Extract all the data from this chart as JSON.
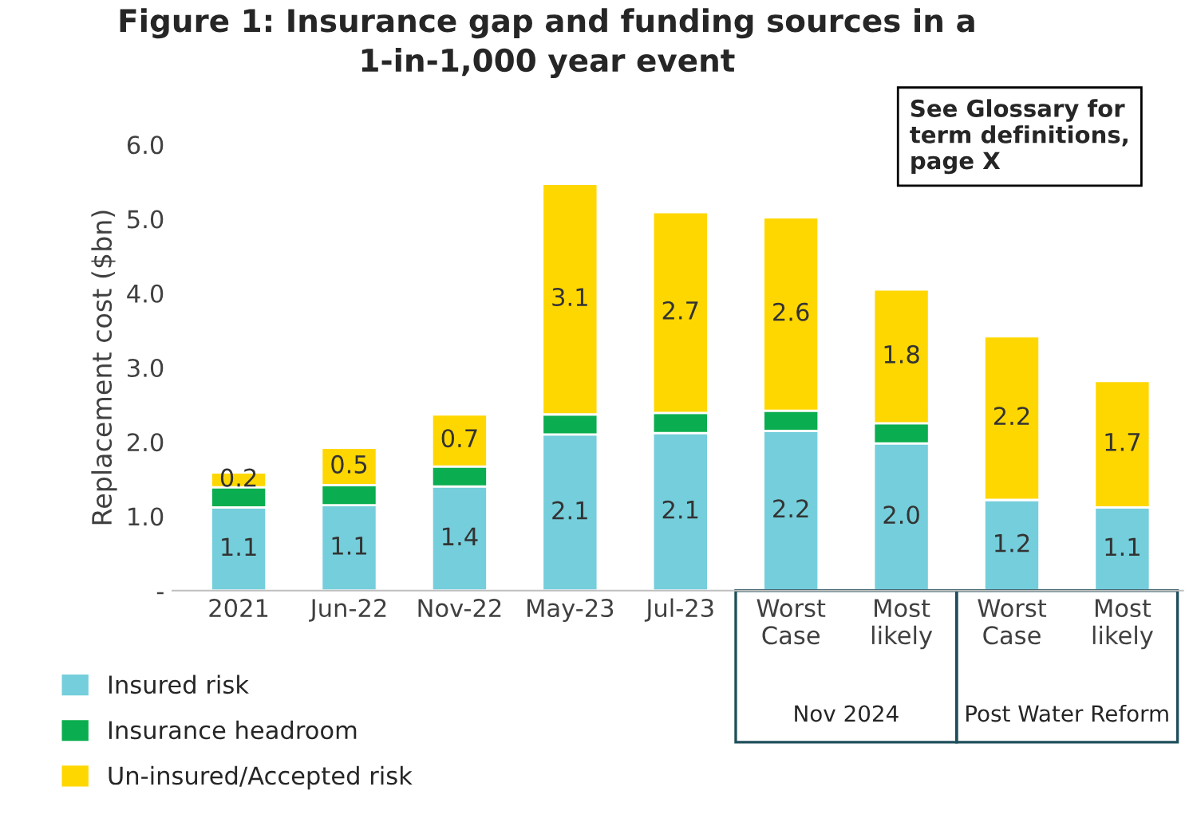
{
  "chart_data": {
    "type": "bar",
    "stacked": true,
    "title": "Figure 1: Insurance gap and funding sources in a\n1-in-1,000 year event",
    "ylabel": "Replacement cost ($bn)",
    "categories": [
      "2021",
      "Jun-22",
      "Nov-22",
      "May-23",
      "Jul-23",
      "Worst\nCase",
      "Most\nlikely",
      "Worst\nCase",
      "Most\nlikely"
    ],
    "series": [
      {
        "name": "Insured risk",
        "color": "#75cedb",
        "values": [
          1.12,
          1.15,
          1.4,
          2.1,
          2.12,
          2.15,
          1.98,
          1.22,
          1.12
        ],
        "value_labels": [
          "1.1",
          "1.1",
          "1.4",
          "2.1",
          "2.1",
          "2.2",
          "2.0",
          "1.2",
          "1.1"
        ]
      },
      {
        "name": "Insurance headroom",
        "color": "#0aad4f",
        "values": [
          0.27,
          0.27,
          0.27,
          0.27,
          0.27,
          0.27,
          0.27,
          null,
          null
        ]
      },
      {
        "name": "Un-insured/Accepted risk",
        "color": "#ffd700",
        "values": [
          0.2,
          0.5,
          0.7,
          3.1,
          2.7,
          2.6,
          1.8,
          2.2,
          1.7
        ],
        "value_labels": [
          "0.2",
          "0.5",
          "0.7",
          "3.1",
          "2.7",
          "2.6",
          "1.8",
          "2.2",
          "1.7"
        ]
      }
    ],
    "ylim": [
      0,
      6
    ],
    "yticks": [
      {
        "value": 0,
        "label": "-"
      },
      {
        "value": 1,
        "label": "1.0"
      },
      {
        "value": 2,
        "label": "2.0"
      },
      {
        "value": 3,
        "label": "3.0"
      },
      {
        "value": 4,
        "label": "4.0"
      },
      {
        "value": 5,
        "label": "5.0"
      },
      {
        "value": 6,
        "label": "6.0"
      }
    ],
    "grid": false,
    "legend": "bottom left",
    "annotations": [
      "See Glossary for term definitions, page X",
      "Nov 2024",
      "Post Water Reform"
    ]
  }
}
